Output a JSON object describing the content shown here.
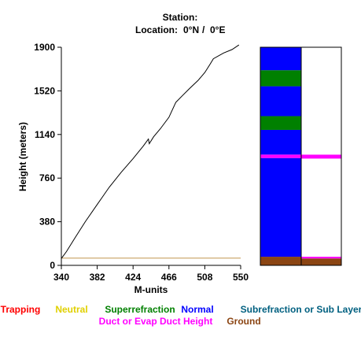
{
  "header": {
    "station_label": "Station:",
    "location_label": "Location:",
    "location_lat": "0°N",
    "location_sep": "/",
    "location_lon": "0°E"
  },
  "chart_data": {
    "type": "line",
    "xlabel": "M-units",
    "ylabel": "Height (meters)",
    "xlim": [
      340,
      550
    ],
    "ylim": [
      0,
      1900
    ],
    "x_ticks": [
      "340",
      "382",
      "424",
      "466",
      "508",
      "550"
    ],
    "y_ticks": [
      "0",
      "380",
      "760",
      "1140",
      "1520",
      "1900"
    ],
    "grid": false,
    "series": [
      {
        "color": "#000000",
        "points": [
          [
            340,
            60
          ],
          [
            346,
            120
          ],
          [
            356,
            240
          ],
          [
            368,
            380
          ],
          [
            382,
            530
          ],
          [
            396,
            680
          ],
          [
            410,
            810
          ],
          [
            424,
            930
          ],
          [
            436,
            1040
          ],
          [
            442,
            1100
          ],
          [
            443,
            1060
          ],
          [
            448,
            1120
          ],
          [
            456,
            1190
          ],
          [
            466,
            1290
          ],
          [
            474,
            1420
          ],
          [
            482,
            1480
          ],
          [
            490,
            1540
          ],
          [
            500,
            1610
          ],
          [
            508,
            1680
          ],
          [
            514,
            1750
          ],
          [
            518,
            1800
          ],
          [
            530,
            1850
          ],
          [
            540,
            1880
          ],
          [
            548,
            1920
          ]
        ]
      }
    ],
    "ground_line": {
      "y": 63,
      "color": "#c8a060"
    },
    "duct_bar": {
      "ylim": [
        0,
        1900
      ],
      "left_segments": [
        {
          "from": 0,
          "to": 75,
          "color": "#8b4513"
        },
        {
          "from": 75,
          "to": 935,
          "color": "#0000ff"
        },
        {
          "from": 935,
          "to": 965,
          "color": "#ff00ff"
        },
        {
          "from": 965,
          "to": 1180,
          "color": "#0000ff"
        },
        {
          "from": 1180,
          "to": 1300,
          "color": "#008000"
        },
        {
          "from": 1300,
          "to": 1560,
          "color": "#0000ff"
        },
        {
          "from": 1560,
          "to": 1700,
          "color": "#008000"
        },
        {
          "from": 1700,
          "to": 1900,
          "color": "#0000ff"
        }
      ],
      "right_segments": [
        {
          "from": 0,
          "to": 60,
          "color": "#8b4513"
        },
        {
          "from": 60,
          "to": 75,
          "color": "#ff00ff"
        },
        {
          "from": 75,
          "to": 930,
          "color": "#ffffff"
        },
        {
          "from": 930,
          "to": 965,
          "color": "#ff00ff"
        },
        {
          "from": 965,
          "to": 1900,
          "color": "#ffffff"
        }
      ]
    },
    "legend": {
      "placement": "bottom",
      "entries": [
        {
          "label": "Trapping",
          "color": "#ff0000"
        },
        {
          "label": "Neutral",
          "color": "#e0d000"
        },
        {
          "label": "Superrefraction",
          "color": "#008000"
        },
        {
          "label": "Normal",
          "color": "#0000ff"
        },
        {
          "label": "Subrefraction or Sub Layer",
          "color": "#006080"
        },
        {
          "label": "Duct or Evap Duct Height",
          "color": "#ff00ff"
        },
        {
          "label": "Ground",
          "color": "#8b4513"
        }
      ]
    }
  }
}
